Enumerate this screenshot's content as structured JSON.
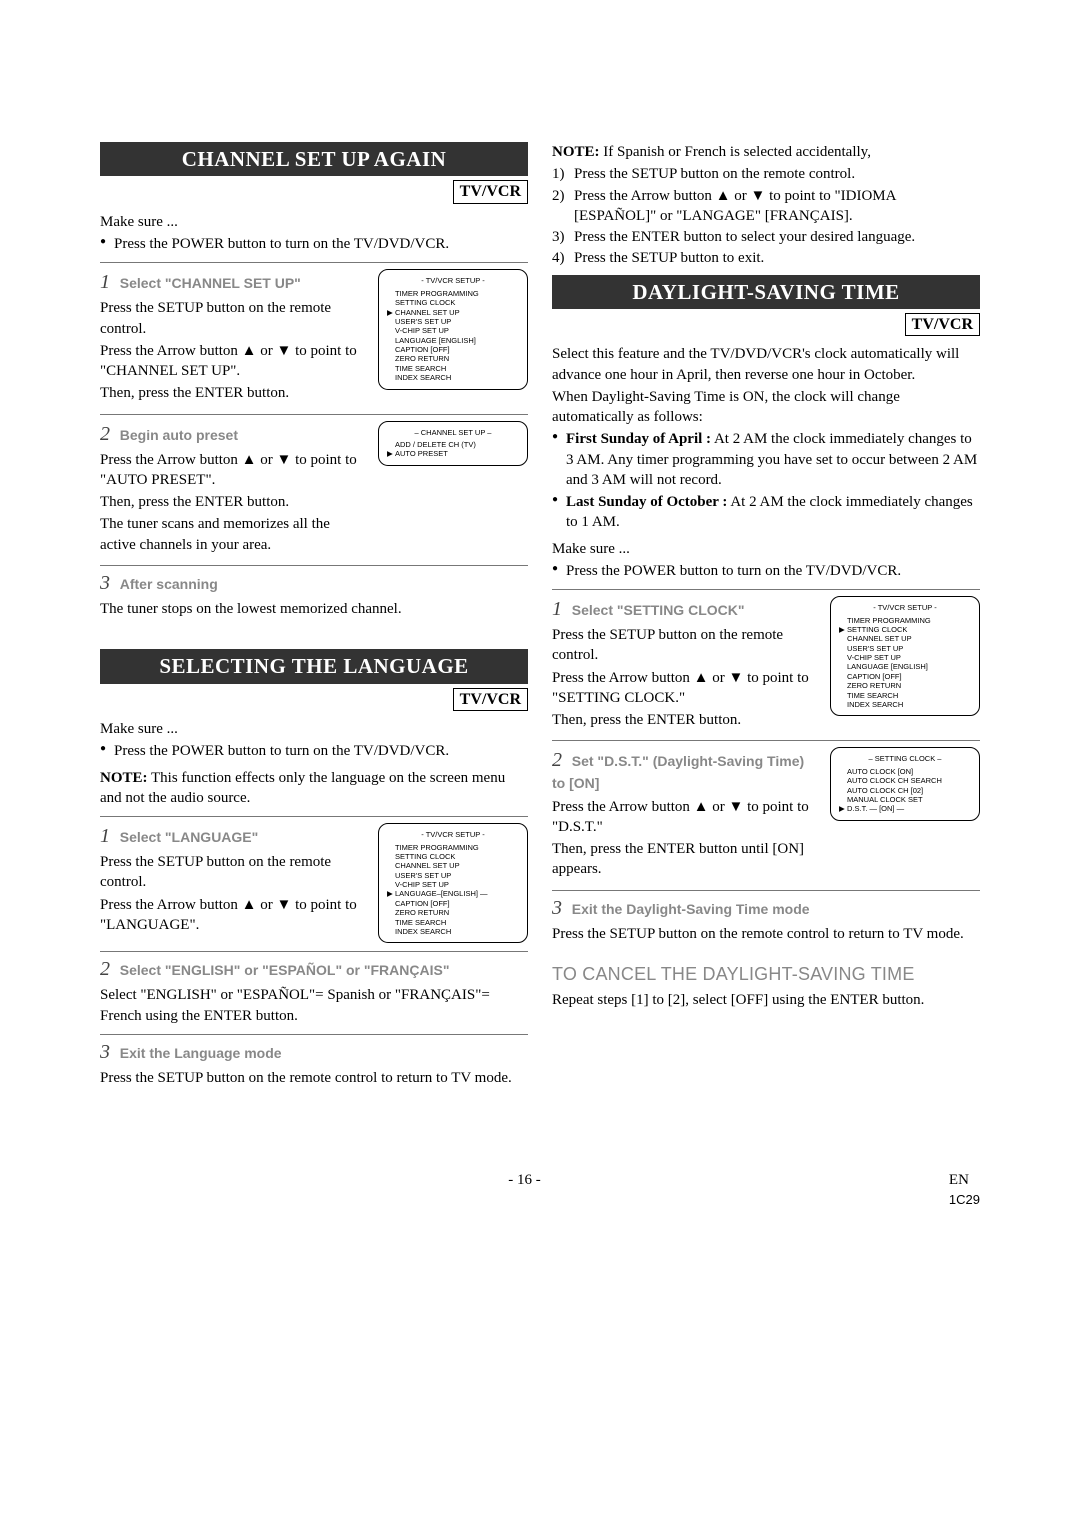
{
  "left": {
    "channel": {
      "title": "CHANNEL SET UP AGAIN",
      "tvvcr": "TV/VCR",
      "make_sure": "Make sure ...",
      "bullet1": "Press the POWER button to turn on the TV/DVD/VCR.",
      "s1": {
        "num": "1",
        "label": "Select \"CHANNEL SET UP\"",
        "p1": "Press the SETUP button on the remote control.",
        "p2": "Press the Arrow button ▲ or ▼ to point to \"CHANNEL SET UP\".",
        "p3": "Then, press the ENTER button."
      },
      "osd1": {
        "title": "- TV/VCR SETUP -",
        "lines": [
          {
            "cur": "",
            "t": "TIMER PROGRAMMING"
          },
          {
            "cur": "",
            "t": "SETTING CLOCK"
          },
          {
            "cur": "▶",
            "t": "CHANNEL SET UP"
          },
          {
            "cur": "",
            "t": "USER'S SET UP"
          },
          {
            "cur": "",
            "t": "V-CHIP SET UP"
          },
          {
            "cur": "",
            "t": "LANGUAGE   [ENGLISH]"
          },
          {
            "cur": "",
            "t": "CAPTION   [OFF]"
          },
          {
            "cur": "",
            "t": "ZERO RETURN"
          },
          {
            "cur": "",
            "t": "TIME SEARCH"
          },
          {
            "cur": "",
            "t": "INDEX SEARCH"
          }
        ]
      },
      "s2": {
        "num": "2",
        "label": "Begin auto preset",
        "p1": "Press the Arrow button ▲ or ▼ to point to \"AUTO PRESET\".",
        "p2": "Then, press the ENTER button.",
        "p3": "The tuner scans and memorizes all the active channels in your area."
      },
      "osd2": {
        "title": "– CHANNEL SET UP –",
        "lines": [
          {
            "cur": "",
            "t": "ADD / DELETE CH (TV)"
          },
          {
            "cur": "▶",
            "t": "AUTO PRESET"
          }
        ]
      },
      "s3": {
        "num": "3",
        "label": "After scanning",
        "p1": "The tuner stops on the lowest memorized channel."
      }
    },
    "language": {
      "title": "SELECTING THE LANGUAGE",
      "tvvcr": "TV/VCR",
      "make_sure": "Make sure ...",
      "bullet1": "Press the POWER button to turn on the TV/DVD/VCR.",
      "note": "NOTE: This function effects only the language on the screen menu and not the audio source.",
      "s1": {
        "num": "1",
        "label": "Select \"LANGUAGE\"",
        "p1": "Press the SETUP button on the remote control.",
        "p2": "Press the Arrow button ▲ or ▼ to point to \"LANGUAGE\"."
      },
      "osd1": {
        "title": "- TV/VCR SETUP -",
        "lines": [
          {
            "cur": "",
            "t": "TIMER PROGRAMMING"
          },
          {
            "cur": "",
            "t": "SETTING CLOCK"
          },
          {
            "cur": "",
            "t": "CHANNEL SET UP"
          },
          {
            "cur": "",
            "t": "USER'S SET UP"
          },
          {
            "cur": "",
            "t": "V-CHIP SET UP"
          },
          {
            "cur": "▶",
            "t": "LANGUAGE–[ENGLISH] —"
          },
          {
            "cur": "",
            "t": "CAPTION   [OFF]"
          },
          {
            "cur": "",
            "t": "ZERO RETURN"
          },
          {
            "cur": "",
            "t": "TIME SEARCH"
          },
          {
            "cur": "",
            "t": "INDEX SEARCH"
          }
        ]
      },
      "s2": {
        "num": "2",
        "label": "Select \"ENGLISH\" or \"ESPAÑOL\" or \"FRANÇAIS\"",
        "p1": "Select \"ENGLISH\" or \"ESPAÑOL\"= Spanish or \"FRANÇAIS\"= French using the ENTER button."
      },
      "s3": {
        "num": "3",
        "label": "Exit the Language mode",
        "p1": "Press the SETUP button on the remote control to return to TV mode."
      }
    }
  },
  "right": {
    "note": {
      "lead": "NOTE: If Spanish or French is selected accidentally,",
      "n1": "Press the SETUP button on the remote control.",
      "n2": "Press the Arrow button ▲ or ▼ to point to \"IDIOMA [ESPAÑOL]\" or \"LANGAGE\" [FRANÇAIS].",
      "n3": "Press the ENTER button to select your desired language.",
      "n4": "Press the SETUP button to exit."
    },
    "dst": {
      "title": "DAYLIGHT-SAVING TIME",
      "tvvcr": "TV/VCR",
      "intro1": "Select this feature and the TV/DVD/VCR's clock automatically will advance one hour in April, then reverse one hour in October.",
      "intro2": "When Daylight-Saving Time is ON, the clock will change automatically as follows:",
      "b1l": "First Sunday of April :",
      "b1": " At 2 AM the clock immediately changes to 3 AM. Any timer programming you have set to occur between 2 AM and 3 AM will not record.",
      "b2l": "Last Sunday of October :",
      "b2": " At 2 AM the clock immediately changes to 1 AM.",
      "make_sure": "Make sure ...",
      "bullet_power": "Press the POWER button to turn on the TV/DVD/VCR.",
      "s1": {
        "num": "1",
        "label": "Select \"SETTING CLOCK\"",
        "p1": "Press the SETUP button on the remote control.",
        "p2": "Press the Arrow button ▲ or ▼ to point to \"SETTING CLOCK.\"",
        "p3": "Then, press the ENTER button."
      },
      "osd1": {
        "title": "- TV/VCR SETUP -",
        "lines": [
          {
            "cur": "",
            "t": "TIMER PROGRAMMING"
          },
          {
            "cur": "▶",
            "t": "SETTING CLOCK"
          },
          {
            "cur": "",
            "t": "CHANNEL SET UP"
          },
          {
            "cur": "",
            "t": "USER'S SET UP"
          },
          {
            "cur": "",
            "t": "V-CHIP SET UP"
          },
          {
            "cur": "",
            "t": "LANGUAGE   [ENGLISH]"
          },
          {
            "cur": "",
            "t": "CAPTION   [OFF]"
          },
          {
            "cur": "",
            "t": "ZERO RETURN"
          },
          {
            "cur": "",
            "t": "TIME SEARCH"
          },
          {
            "cur": "",
            "t": "INDEX SEARCH"
          }
        ]
      },
      "s2": {
        "num": "2",
        "label": "Set \"D.S.T.\" (Daylight-Saving Time) to [ON]",
        "p1": "Press the Arrow button ▲ or ▼ to point to \"D.S.T.\"",
        "p2": "Then, press the ENTER button until [ON] appears."
      },
      "osd2": {
        "title": "– SETTING CLOCK –",
        "lines": [
          {
            "cur": "",
            "t": "AUTO CLOCK              [ON]"
          },
          {
            "cur": "",
            "t": "AUTO CLOCK CH SEARCH"
          },
          {
            "cur": "",
            "t": "AUTO CLOCK CH        [02]"
          },
          {
            "cur": "",
            "t": "MANUAL CLOCK SET"
          },
          {
            "cur": "▶",
            "t": "D.S.T.           — [ON] —"
          }
        ]
      },
      "s3": {
        "num": "3",
        "label": "Exit the Daylight-Saving Time mode",
        "p1": "Press the SETUP button on the remote control to return to TV mode."
      },
      "cancel_head": "TO CANCEL THE DAYLIGHT-SAVING TIME",
      "cancel_body": "Repeat steps [1] to [2], select [OFF] using the ENTER button."
    }
  },
  "footer": {
    "page": "- 16 -",
    "en": "EN",
    "code": "1C29"
  }
}
